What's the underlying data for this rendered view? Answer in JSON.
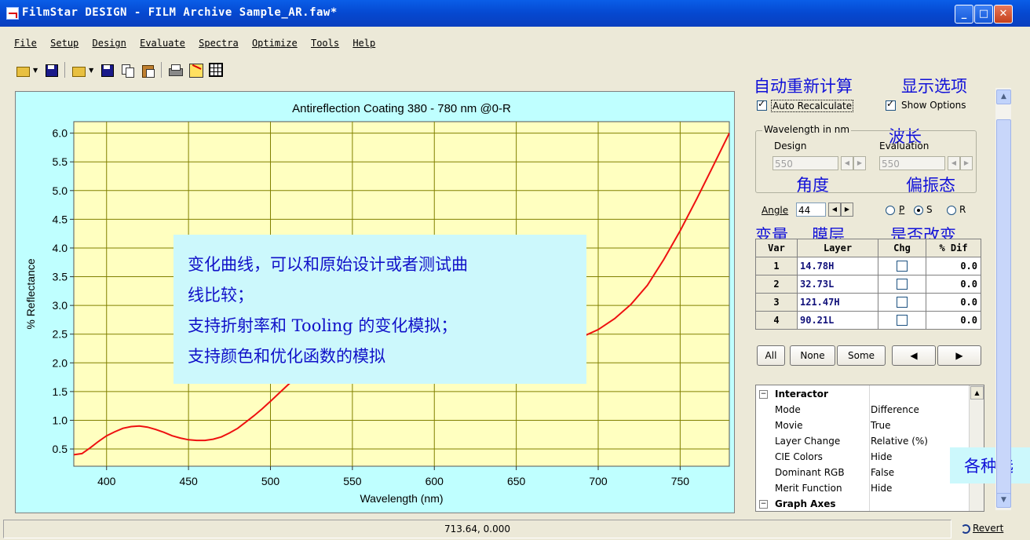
{
  "window": {
    "title": "FilmStar DESIGN - FILM Archive Sample_AR.faw*",
    "buttons": {
      "minimize": "_",
      "maximize": "□",
      "close": "✕"
    }
  },
  "menu": [
    "File",
    "Setup",
    "Design",
    "Evaluate",
    "Spectra",
    "Optimize",
    "Tools",
    "Help"
  ],
  "toolbar": [
    "open-icon",
    "save-icon",
    "open-icon",
    "save-icon",
    "copy-icon",
    "paste-icon",
    "print-icon",
    "chart-icon",
    "table-icon"
  ],
  "chart_data": {
    "type": "line",
    "title": "Antireflection Coating 380 - 780 nm @0-R",
    "xlabel": "Wavelength (nm)",
    "ylabel": "% Reflectance",
    "xlim": [
      380,
      780
    ],
    "ylim": [
      0.2,
      6.2
    ],
    "xticks": [
      400,
      450,
      500,
      550,
      600,
      650,
      700,
      750
    ],
    "yticks": [
      "0.5",
      "1.0",
      "1.5",
      "2.0",
      "2.5",
      "3.0",
      "3.5",
      "4.0",
      "4.5",
      "5.0",
      "5.5",
      "6.0"
    ],
    "grid": true,
    "colors": {
      "plot_bg": "#ffffc0",
      "frame_bg": "#bfffff",
      "line": "#ee1010",
      "grid": "#808000"
    },
    "series": [
      {
        "x": [
          380,
          385,
          390,
          395,
          400,
          405,
          410,
          415,
          420,
          425,
          430,
          435,
          440,
          445,
          450,
          455,
          460,
          465,
          470,
          475,
          480,
          485,
          490,
          495,
          500,
          510,
          520,
          530,
          540,
          550,
          560,
          570,
          580,
          590,
          600,
          610,
          620,
          630,
          640,
          650,
          660,
          670,
          680,
          690,
          700,
          710,
          720,
          730,
          740,
          750,
          760,
          770,
          780
        ],
        "y": [
          0.4,
          0.42,
          0.52,
          0.63,
          0.73,
          0.8,
          0.86,
          0.89,
          0.9,
          0.88,
          0.84,
          0.79,
          0.73,
          0.69,
          0.66,
          0.65,
          0.65,
          0.67,
          0.71,
          0.78,
          0.86,
          0.97,
          1.08,
          1.2,
          1.33,
          1.6,
          1.86,
          2.08,
          2.25,
          2.38,
          2.5,
          2.58,
          2.62,
          2.63,
          2.6,
          2.55,
          2.48,
          2.4,
          2.33,
          2.28,
          2.26,
          2.28,
          2.35,
          2.45,
          2.58,
          2.77,
          3.02,
          3.35,
          3.8,
          4.3,
          4.85,
          5.42,
          6.0
        ]
      }
    ]
  },
  "annotation": {
    "lines": [
      "变化曲线，可以和原始设计或者测试曲",
      "线比较；",
      "支持折射率和 Tooling 的变化模拟；",
      "支持颜色和优化函数的模拟"
    ]
  },
  "labels_cn": {
    "auto_recalc": "自动重新计算",
    "show_options": "显示选项",
    "wavelength": "波长",
    "angle": "角度",
    "polarization": "偏振态",
    "variable": "变量",
    "layer": "膜层",
    "change": "是否改变",
    "options": "各种选"
  },
  "options": {
    "auto_recalculate": "Auto Recalculate",
    "show_options": "Show Options",
    "wavelength_group": "Wavelength in nm",
    "design_label": "Design",
    "evaluation_label": "Evaluation",
    "design_value": "550",
    "evaluation_value": "550",
    "angle_label": "Angle",
    "angle_value": "44",
    "pol_p": "P",
    "pol_s": "S",
    "pol_r": "R"
  },
  "layer_table": {
    "headers": [
      "Var",
      "Layer",
      "Chg",
      "% Dif"
    ],
    "rows": [
      {
        "var": "1",
        "layer": "14.78H",
        "dif": "0.0"
      },
      {
        "var": "2",
        "layer": "32.73L",
        "dif": "0.0"
      },
      {
        "var": "3",
        "layer": "121.47H",
        "dif": "0.0"
      },
      {
        "var": "4",
        "layer": "90.21L",
        "dif": "0.0"
      }
    ]
  },
  "buttons": {
    "all": "All",
    "none": "None",
    "some": "Some",
    "prev": "◀",
    "next": "▶"
  },
  "properties": {
    "group1": "Interactor",
    "rows": [
      {
        "key": "Mode",
        "value": "Difference"
      },
      {
        "key": "Movie",
        "value": "True"
      },
      {
        "key": "Layer Change",
        "value": "Relative (%)"
      },
      {
        "key": "CIE Colors",
        "value": "Hide"
      },
      {
        "key": "Dominant RGB",
        "value": "False"
      },
      {
        "key": "Merit Function",
        "value": "Hide"
      }
    ],
    "group2": "Graph Axes"
  },
  "status": {
    "coords": "713.64, 0.000",
    "revert": "Revert"
  }
}
